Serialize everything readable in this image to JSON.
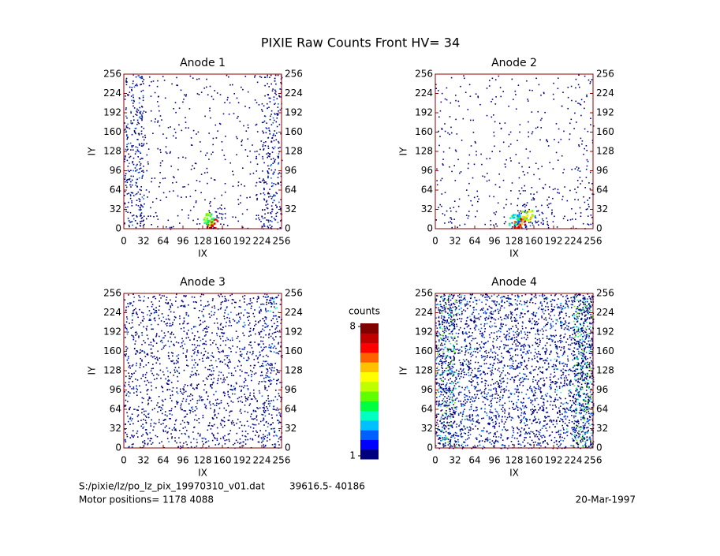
{
  "title": "PIXIE Raw Counts Front HV= 34",
  "colorbar": {
    "title": "counts",
    "range": [
      1,
      8
    ],
    "ticks": [
      1,
      8
    ],
    "colors": [
      "#00007f",
      "#0000ff",
      "#0060ff",
      "#00c0ff",
      "#00ffc0",
      "#00ff40",
      "#60ff00",
      "#c0ff00",
      "#ffff00",
      "#ffc000",
      "#ff6000",
      "#ff0000",
      "#c00000",
      "#800000"
    ]
  },
  "footer": {
    "file": "S:/pixie/lz/po_lz_pix_19970310_v01.dat",
    "range_text": "39616.5- 40186",
    "motor": "Motor positions= 1178 4088",
    "date": "20-Mar-1997"
  },
  "chart_data": [
    {
      "type": "heatmap",
      "title": "Anode 1",
      "xlabel": "IX",
      "ylabel": "IY",
      "xlim": [
        0,
        256
      ],
      "ylim": [
        0,
        256
      ],
      "xticks": [
        0,
        32,
        64,
        96,
        128,
        160,
        192,
        224,
        256
      ],
      "yticks": [
        0,
        32,
        64,
        96,
        128,
        160,
        192,
        224,
        256
      ],
      "axis_color": "#8b0000",
      "density": [
        [
          40,
          10,
          8,
          8,
          25,
          8,
          10,
          40
        ],
        [
          40,
          8,
          6,
          6,
          10,
          6,
          8,
          38
        ],
        [
          38,
          8,
          6,
          6,
          6,
          6,
          8,
          36
        ],
        [
          40,
          8,
          6,
          6,
          6,
          6,
          8,
          34
        ],
        [
          42,
          8,
          6,
          6,
          6,
          6,
          8,
          34
        ],
        [
          40,
          8,
          6,
          6,
          6,
          6,
          8,
          30
        ],
        [
          36,
          8,
          6,
          6,
          6,
          6,
          8,
          30
        ],
        [
          34,
          8,
          6,
          6,
          6,
          6,
          8,
          30
        ]
      ],
      "peaks": [
        {
          "x": 142,
          "y": 8,
          "value": 8
        },
        {
          "x": 136,
          "y": 18,
          "value": 5
        }
      ]
    },
    {
      "type": "heatmap",
      "title": "Anode 2",
      "xlabel": "IX",
      "ylabel": "IY",
      "xlim": [
        0,
        256
      ],
      "ylim": [
        0,
        256
      ],
      "xticks": [
        0,
        32,
        64,
        96,
        128,
        160,
        192,
        224,
        256
      ],
      "yticks": [
        0,
        32,
        64,
        96,
        128,
        160,
        192,
        224,
        256
      ],
      "axis_color": "#8b0000",
      "density": [
        [
          14,
          8,
          8,
          12,
          40,
          30,
          8,
          14
        ],
        [
          8,
          6,
          6,
          6,
          20,
          10,
          6,
          14
        ],
        [
          6,
          5,
          5,
          5,
          8,
          6,
          5,
          12
        ],
        [
          6,
          5,
          5,
          5,
          5,
          5,
          5,
          10
        ],
        [
          8,
          5,
          5,
          5,
          5,
          5,
          5,
          10
        ],
        [
          8,
          5,
          5,
          5,
          5,
          5,
          5,
          8
        ],
        [
          6,
          5,
          5,
          5,
          5,
          5,
          5,
          10
        ],
        [
          6,
          5,
          5,
          5,
          5,
          5,
          5,
          10
        ]
      ],
      "peaks": [
        {
          "x": 136,
          "y": 10,
          "value": 8
        },
        {
          "x": 148,
          "y": 22,
          "value": 6
        },
        {
          "x": 128,
          "y": 16,
          "value": 4
        }
      ]
    },
    {
      "type": "heatmap",
      "title": "Anode 3",
      "xlabel": "IX",
      "ylabel": "IY",
      "xlim": [
        0,
        256
      ],
      "ylim": [
        0,
        256
      ],
      "xticks": [
        0,
        32,
        64,
        96,
        128,
        160,
        192,
        224,
        256
      ],
      "yticks": [
        0,
        32,
        64,
        96,
        128,
        160,
        192,
        224,
        256
      ],
      "axis_color": "#8b0000",
      "density": [
        [
          28,
          24,
          24,
          24,
          24,
          24,
          26,
          40
        ],
        [
          28,
          24,
          24,
          24,
          24,
          24,
          26,
          36
        ],
        [
          28,
          24,
          24,
          26,
          26,
          24,
          26,
          34
        ],
        [
          28,
          24,
          26,
          26,
          26,
          26,
          26,
          34
        ],
        [
          28,
          24,
          26,
          26,
          26,
          26,
          26,
          34
        ],
        [
          28,
          24,
          24,
          26,
          26,
          24,
          26,
          36
        ],
        [
          28,
          24,
          24,
          24,
          24,
          24,
          26,
          40
        ],
        [
          28,
          24,
          24,
          24,
          24,
          24,
          28,
          48
        ]
      ],
      "peaks": []
    },
    {
      "type": "heatmap",
      "title": "Anode 4",
      "xlabel": "IX",
      "ylabel": "IY",
      "xlim": [
        0,
        256
      ],
      "ylim": [
        0,
        256
      ],
      "xticks": [
        0,
        32,
        64,
        96,
        128,
        160,
        192,
        224,
        256
      ],
      "yticks": [
        0,
        32,
        64,
        96,
        128,
        160,
        192,
        224,
        256
      ],
      "axis_color": "#8b0000",
      "density": [
        [
          80,
          45,
          40,
          40,
          40,
          40,
          45,
          100
        ],
        [
          80,
          45,
          40,
          40,
          40,
          40,
          45,
          100
        ],
        [
          85,
          45,
          40,
          40,
          40,
          40,
          45,
          100
        ],
        [
          85,
          45,
          40,
          40,
          40,
          40,
          45,
          100
        ],
        [
          85,
          45,
          40,
          40,
          40,
          40,
          45,
          100
        ],
        [
          85,
          45,
          40,
          40,
          40,
          40,
          45,
          100
        ],
        [
          85,
          45,
          40,
          40,
          40,
          40,
          45,
          100
        ],
        [
          90,
          50,
          45,
          45,
          45,
          45,
          50,
          110
        ]
      ],
      "peaks": []
    }
  ]
}
